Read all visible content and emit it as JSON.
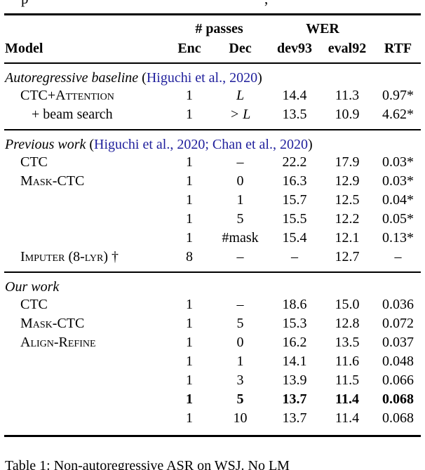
{
  "page": {
    "background": "#ffffff",
    "text_color": "#000000",
    "link_color": "#1f1f9c"
  },
  "clipped_line_above": {
    "fragments": [
      "p",
      ","
    ]
  },
  "table": {
    "header": {
      "model": "Model",
      "passes_group": "# passes",
      "wer_group": "WER",
      "enc": "Enc",
      "dec": "Dec",
      "dev93": "dev93",
      "eval92": "eval92",
      "rtf": "RTF"
    },
    "sections": [
      {
        "heading": [
          {
            "text": "Autoregressive baseline",
            "style": "italic"
          },
          {
            "text": " (",
            "style": "plain"
          },
          {
            "text": "Higuchi et al., 2020",
            "style": "cite"
          },
          {
            "text": ")",
            "style": "plain"
          }
        ],
        "rows": [
          {
            "model": "CTC+Attention",
            "smallcaps": true,
            "indent": 1,
            "enc": "1",
            "dec": "L",
            "dec_math": true,
            "dev93": "14.4",
            "eval92": "11.3",
            "rtf": "0.97*",
            "bold": false
          },
          {
            "model": "+ beam search",
            "smallcaps": false,
            "indent": 2,
            "enc": "1",
            "dec": "> L",
            "dec_math": true,
            "dev93": "13.5",
            "eval92": "10.9",
            "rtf": "4.62*",
            "bold": false
          }
        ]
      },
      {
        "heading": [
          {
            "text": "Previous work",
            "style": "italic"
          },
          {
            "text": " (",
            "style": "plain"
          },
          {
            "text": "Higuchi et al., 2020",
            "style": "cite"
          },
          {
            "text": "; ",
            "style": "citesep"
          },
          {
            "text": "Chan et al., 2020",
            "style": "cite"
          },
          {
            "text": ")",
            "style": "plain"
          }
        ],
        "rows": [
          {
            "model": "CTC",
            "smallcaps": false,
            "indent": 1,
            "enc": "1",
            "dec": "–",
            "dec_math": false,
            "dev93": "22.2",
            "eval92": "17.9",
            "rtf": "0.03*",
            "bold": false
          },
          {
            "model": "Mask-CTC",
            "smallcaps": true,
            "indent": 1,
            "enc": "1",
            "dec": "0",
            "dec_math": false,
            "dev93": "16.3",
            "eval92": "12.9",
            "rtf": "0.03*",
            "bold": false
          },
          {
            "model": "",
            "smallcaps": false,
            "indent": 1,
            "enc": "1",
            "dec": "1",
            "dec_math": false,
            "dev93": "15.7",
            "eval92": "12.5",
            "rtf": "0.04*",
            "bold": false
          },
          {
            "model": "",
            "smallcaps": false,
            "indent": 1,
            "enc": "1",
            "dec": "5",
            "dec_math": false,
            "dev93": "15.5",
            "eval92": "12.2",
            "rtf": "0.05*",
            "bold": false
          },
          {
            "model": "",
            "smallcaps": false,
            "indent": 1,
            "enc": "1",
            "dec": "#mask",
            "dec_math": false,
            "dev93": "15.4",
            "eval92": "12.1",
            "rtf": "0.13*",
            "bold": false
          },
          {
            "model": "Imputer (8-lyr) †",
            "smallcaps": true,
            "indent": 1,
            "enc": "8",
            "dec": "–",
            "dec_math": false,
            "dev93": "–",
            "eval92": "12.7",
            "rtf": "–",
            "bold": false
          }
        ]
      },
      {
        "heading": [
          {
            "text": "Our work",
            "style": "italic"
          }
        ],
        "rows": [
          {
            "model": "CTC",
            "smallcaps": false,
            "indent": 1,
            "enc": "1",
            "dec": "–",
            "dec_math": false,
            "dev93": "18.6",
            "eval92": "15.0",
            "rtf": "0.036",
            "bold": false
          },
          {
            "model": "Mask-CTC",
            "smallcaps": true,
            "indent": 1,
            "enc": "1",
            "dec": "5",
            "dec_math": false,
            "dev93": "15.3",
            "eval92": "12.8",
            "rtf": "0.072",
            "bold": false
          },
          {
            "model": "Align-Refine",
            "smallcaps": true,
            "indent": 1,
            "enc": "1",
            "dec": "0",
            "dec_math": false,
            "dev93": "16.2",
            "eval92": "13.5",
            "rtf": "0.037",
            "bold": false
          },
          {
            "model": "",
            "smallcaps": false,
            "indent": 1,
            "enc": "1",
            "dec": "1",
            "dec_math": false,
            "dev93": "14.1",
            "eval92": "11.6",
            "rtf": "0.048",
            "bold": false
          },
          {
            "model": "",
            "smallcaps": false,
            "indent": 1,
            "enc": "1",
            "dec": "3",
            "dec_math": false,
            "dev93": "13.9",
            "eval92": "11.5",
            "rtf": "0.066",
            "bold": false
          },
          {
            "model": "",
            "smallcaps": false,
            "indent": 1,
            "enc": "1",
            "dec": "5",
            "dec_math": false,
            "dev93": "13.7",
            "eval92": "11.4",
            "rtf": "0.068",
            "bold": true
          },
          {
            "model": "",
            "smallcaps": false,
            "indent": 1,
            "enc": "1",
            "dec": "10",
            "dec_math": false,
            "dev93": "13.7",
            "eval92": "11.4",
            "rtf": "0.068",
            "bold": false
          }
        ]
      }
    ]
  },
  "caption": {
    "text": "Table 1: Non-autoregressive ASR on WSJ. No LM"
  }
}
